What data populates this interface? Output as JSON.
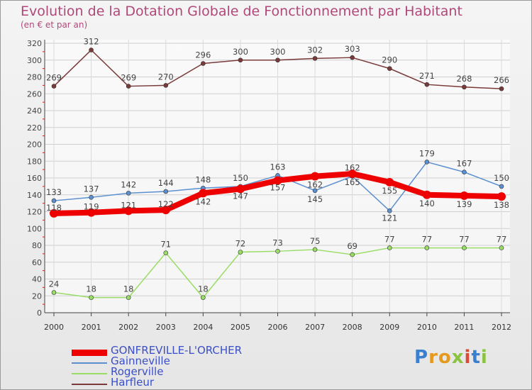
{
  "header": {
    "title": "Evolution de la Dotation Globale de Fonctionnement par Habitant",
    "subtitle": "(en € et par an)"
  },
  "chart_data": {
    "type": "line",
    "title": "Evolution de la Dotation Globale de Fonctionnement par Habitant",
    "subtitle": "(en € et par an)",
    "xlabel": "",
    "ylabel": "",
    "x": [
      "2000",
      "2001",
      "2002",
      "2003",
      "2004",
      "2005",
      "2006",
      "2007",
      "2008",
      "2009",
      "2010",
      "2011",
      "2012"
    ],
    "ylim": [
      0,
      320
    ],
    "yticks": [
      0,
      20,
      40,
      60,
      80,
      100,
      120,
      140,
      160,
      180,
      200,
      220,
      240,
      260,
      280,
      300,
      320
    ],
    "grid": true,
    "legend_position": "bottom-left",
    "series": [
      {
        "name": "GONFREVILLE-L'ORCHER",
        "color": "#ee0000",
        "emphasis": "thick",
        "values": [
          118,
          119,
          121,
          122,
          142,
          147,
          157,
          162,
          165,
          155,
          140,
          139,
          138
        ]
      },
      {
        "name": "Gainneville",
        "color": "#5b8fd0",
        "emphasis": "thin",
        "values": [
          133,
          137,
          142,
          144,
          148,
          150,
          163,
          145,
          162,
          121,
          179,
          167,
          150
        ]
      },
      {
        "name": "Rogerville",
        "color": "#99dd66",
        "emphasis": "thin",
        "values": [
          24,
          18,
          18,
          71,
          18,
          72,
          73,
          75,
          69,
          77,
          77,
          77,
          77
        ]
      },
      {
        "name": "Harfleur",
        "color": "#7a3a3a",
        "emphasis": "thin",
        "values": [
          269,
          312,
          269,
          270,
          296,
          300,
          300,
          302,
          303,
          290,
          271,
          268,
          266
        ]
      }
    ]
  },
  "legend": {
    "items": [
      {
        "label": "GONFREVILLE-L'ORCHER",
        "color": "#ee0000"
      },
      {
        "label": "Gainneville",
        "color": "#5b8fd0"
      },
      {
        "label": "Rogerville",
        "color": "#99dd66"
      },
      {
        "label": "Harfleur",
        "color": "#7a3a3a"
      }
    ]
  },
  "logo": {
    "letters": [
      {
        "char": "P",
        "color": "#3a7fd0"
      },
      {
        "char": "r",
        "color": "#e59a1e"
      },
      {
        "char": "o",
        "color": "#e59a1e"
      },
      {
        "char": "x",
        "color": "#8ac43f"
      },
      {
        "char": "i",
        "color": "#d94b36"
      },
      {
        "char": "t",
        "color": "#3a7fd0"
      },
      {
        "char": "i",
        "color": "#8ac43f"
      }
    ]
  }
}
